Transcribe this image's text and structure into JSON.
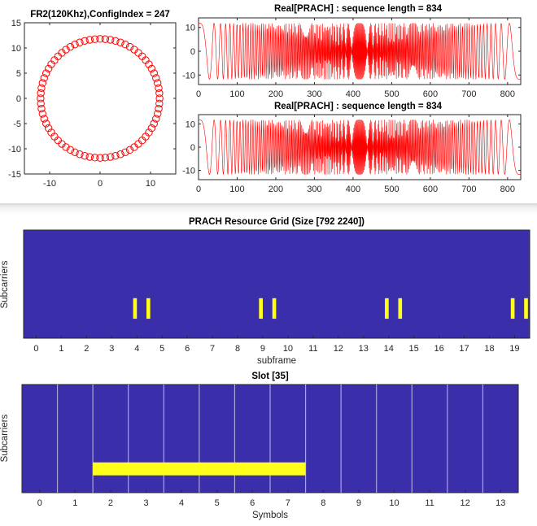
{
  "chart_data": [
    {
      "type": "scatter",
      "title": "FR2(120Khz),ConfigIndex = 247",
      "xlabel": "",
      "ylabel": "",
      "xlim": [
        -15,
        15
      ],
      "ylim": [
        -15,
        15
      ],
      "xticks": [
        "-10",
        "0",
        "10"
      ],
      "yticks": [
        "15",
        "10",
        "5",
        "0",
        "-5",
        "-10",
        "-15"
      ],
      "marker": "circle-open",
      "color": "#ff0000",
      "description_points": "constellation of 72 points on a circle of radius ≈11.8 (Zadoff-Chu PRACH sequence)",
      "points": [
        [
          11.8,
          0.0
        ],
        [
          11.75,
          1.03
        ],
        [
          11.62,
          2.05
        ],
        [
          11.4,
          3.05
        ],
        [
          11.09,
          4.04
        ],
        [
          10.69,
          4.99
        ],
        [
          10.22,
          5.9
        ],
        [
          9.67,
          6.77
        ],
        [
          9.04,
          7.58
        ],
        [
          8.34,
          8.34
        ],
        [
          7.58,
          9.04
        ],
        [
          6.77,
          9.67
        ],
        [
          5.9,
          10.22
        ],
        [
          4.99,
          10.69
        ],
        [
          4.04,
          11.09
        ],
        [
          3.05,
          11.4
        ],
        [
          2.05,
          11.62
        ],
        [
          1.03,
          11.75
        ],
        [
          0.0,
          11.8
        ],
        [
          -1.03,
          11.75
        ],
        [
          -2.05,
          11.62
        ],
        [
          -3.05,
          11.4
        ],
        [
          -4.04,
          11.09
        ],
        [
          -4.99,
          10.69
        ],
        [
          -5.9,
          10.22
        ],
        [
          -6.77,
          9.67
        ],
        [
          -7.58,
          9.04
        ],
        [
          -8.34,
          8.34
        ],
        [
          -9.04,
          7.58
        ],
        [
          -9.67,
          6.77
        ],
        [
          -10.22,
          5.9
        ],
        [
          -10.69,
          4.99
        ],
        [
          -11.09,
          4.04
        ],
        [
          -11.4,
          3.05
        ],
        [
          -11.62,
          2.05
        ],
        [
          -11.75,
          1.03
        ],
        [
          -11.8,
          0.0
        ],
        [
          -11.75,
          -1.03
        ],
        [
          -11.62,
          -2.05
        ],
        [
          -11.4,
          -3.05
        ],
        [
          -11.09,
          -4.04
        ],
        [
          -10.69,
          -4.99
        ],
        [
          -10.22,
          -5.9
        ],
        [
          -9.67,
          -6.77
        ],
        [
          -9.04,
          -7.58
        ],
        [
          -8.34,
          -8.34
        ],
        [
          -7.58,
          -9.04
        ],
        [
          -6.77,
          -9.67
        ],
        [
          -5.9,
          -10.22
        ],
        [
          -4.99,
          -10.69
        ],
        [
          -4.04,
          -11.09
        ],
        [
          -3.05,
          -11.4
        ],
        [
          -2.05,
          -11.62
        ],
        [
          -1.03,
          -11.75
        ],
        [
          0.0,
          -11.8
        ],
        [
          1.03,
          -11.75
        ],
        [
          2.05,
          -11.62
        ],
        [
          3.05,
          -11.4
        ],
        [
          4.04,
          -11.09
        ],
        [
          4.99,
          -10.69
        ],
        [
          5.9,
          -10.22
        ],
        [
          6.77,
          -9.67
        ],
        [
          7.58,
          -9.04
        ],
        [
          8.34,
          -8.34
        ],
        [
          9.04,
          -7.58
        ],
        [
          9.67,
          -6.77
        ],
        [
          10.22,
          -5.9
        ],
        [
          10.69,
          -4.99
        ],
        [
          11.09,
          -4.04
        ],
        [
          11.4,
          -3.05
        ],
        [
          11.62,
          -2.05
        ],
        [
          11.75,
          -1.03
        ]
      ]
    },
    {
      "type": "line",
      "title": "Real[PRACH] : sequence length = 834",
      "xlabel": "",
      "ylabel": "",
      "xlim": [
        0,
        834
      ],
      "ylim": [
        -14,
        14
      ],
      "xticks": [
        "0",
        "100",
        "200",
        "300",
        "400",
        "500",
        "600",
        "700",
        "800"
      ],
      "yticks": [
        "10",
        "0",
        "-10"
      ],
      "color": "#ff0000",
      "signal": {
        "samples": 834,
        "amplitude": 11.8,
        "sequence": "Zadoff-Chu real part"
      }
    },
    {
      "type": "line",
      "title": "Real[PRACH] : sequence length = 834",
      "xlabel": "",
      "ylabel": "",
      "xlim": [
        0,
        834
      ],
      "ylim": [
        -14,
        14
      ],
      "xticks": [
        "0",
        "100",
        "200",
        "300",
        "400",
        "500",
        "600",
        "700",
        "800"
      ],
      "yticks": [
        "10",
        "0",
        "-10"
      ],
      "color": "#ff0000",
      "signal": {
        "samples": 834,
        "amplitude": 11.8,
        "sequence": "Zadoff-Chu real part"
      }
    },
    {
      "type": "heatmap",
      "title": "PRACH Resource Grid (Size [792 2240])",
      "xlabel": "subframe",
      "ylabel": "Subcarriers",
      "xlim": [
        -0.5,
        19.6
      ],
      "xticks": [
        "0",
        "1",
        "2",
        "3",
        "4",
        "5",
        "6",
        "7",
        "8",
        "9",
        "10",
        "11",
        "12",
        "13",
        "14",
        "15",
        "16",
        "17",
        "18",
        "19"
      ],
      "background_color": "#3a2eab",
      "occupied_color": "#ffff19",
      "occupied_x_ranges": [
        [
          3.85,
          4.0
        ],
        [
          4.38,
          4.53
        ],
        [
          8.85,
          9.0
        ],
        [
          9.38,
          9.53
        ],
        [
          13.85,
          14.0
        ],
        [
          14.38,
          14.53
        ],
        [
          18.85,
          19.0
        ],
        [
          19.38,
          19.53
        ]
      ],
      "occupied_rows_fraction": [
        0.63,
        0.82
      ]
    },
    {
      "type": "heatmap",
      "title": "Slot [35]",
      "xlabel": "Symbols",
      "ylabel": "Subcarriers",
      "xlim": [
        -0.5,
        13.5
      ],
      "xticks": [
        "0",
        "1",
        "2",
        "3",
        "4",
        "5",
        "6",
        "7",
        "8",
        "9",
        "10",
        "11",
        "12",
        "13"
      ],
      "background_color": "#3a2eab",
      "occupied_color": "#ffff19",
      "gridline_color": "#a9a6d8",
      "symbol_boundaries": [
        0.5,
        1.5,
        2.5,
        3.5,
        4.5,
        5.5,
        6.5,
        7.5,
        8.5,
        9.5,
        10.5,
        11.5,
        12.5
      ],
      "occupied_symbols": [
        2,
        3,
        4,
        5,
        6,
        7
      ],
      "occupied_rows_fraction": [
        0.72,
        0.84
      ]
    }
  ]
}
